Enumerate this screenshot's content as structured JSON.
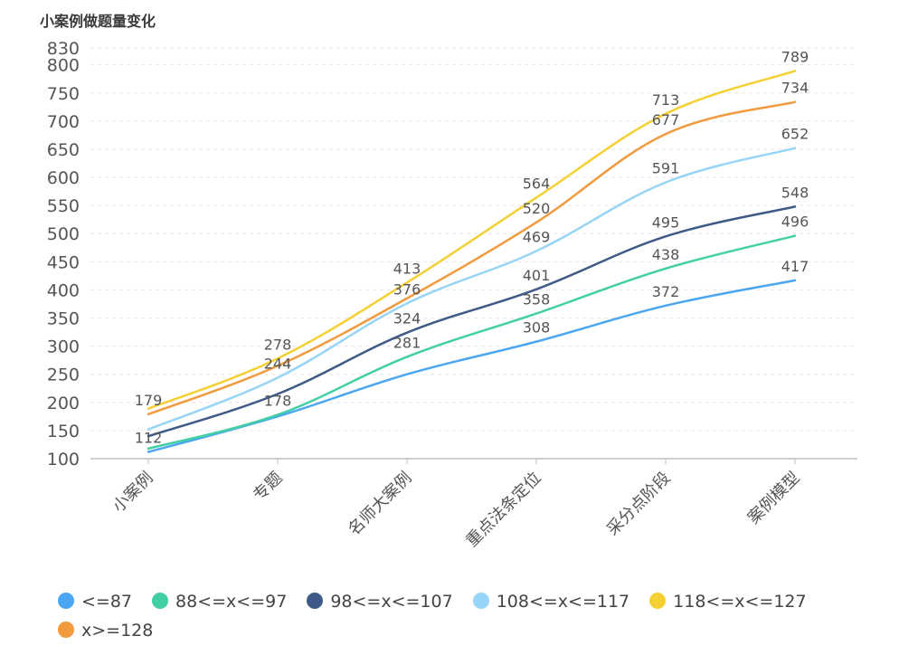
{
  "chart_data": {
    "type": "line",
    "title": "小案例做题量变化",
    "categories": [
      "小案例",
      "专题",
      "名师大案例",
      "重点法条定位",
      "采分点阶段",
      "案例模型"
    ],
    "y_ticks": [
      100,
      150,
      200,
      250,
      300,
      350,
      400,
      450,
      500,
      550,
      600,
      650,
      700,
      750,
      800,
      830
    ],
    "ylim": [
      100,
      830
    ],
    "grid": true,
    "legend_position": "bottom",
    "series": [
      {
        "name": "<=87",
        "color": "#4aa6f0",
        "values": [
          112,
          175,
          250,
          308,
          372,
          417
        ],
        "labels": [
          "112",
          "",
          "",
          "308",
          "372",
          "417"
        ]
      },
      {
        "name": "88<=x<=97",
        "color": "#43cfa6",
        "values": [
          118,
          178,
          281,
          358,
          438,
          496
        ],
        "labels": [
          "",
          "178",
          "281",
          "358",
          "438",
          "496"
        ]
      },
      {
        "name": "98<=x<=107",
        "color": "#3f5a86",
        "values": [
          140,
          215,
          324,
          401,
          495,
          548
        ],
        "labels": [
          "",
          "",
          "324",
          "401",
          "495",
          "548"
        ]
      },
      {
        "name": "108<=x<=117",
        "color": "#97d4f5",
        "values": [
          152,
          244,
          376,
          469,
          591,
          652
        ],
        "labels": [
          "",
          "244",
          "376",
          "469",
          "591",
          "652"
        ]
      },
      {
        "name": "118<=x<=127",
        "color": "#f5d032",
        "values": [
          189,
          278,
          413,
          564,
          713,
          789
        ],
        "labels": [
          "",
          "278",
          "413",
          "564",
          "713",
          "789"
        ]
      },
      {
        "name": "x>=128",
        "color": "#f19a3e",
        "values": [
          179,
          265,
          385,
          520,
          677,
          734
        ],
        "labels": [
          "179",
          "",
          "",
          "520",
          "677",
          "734"
        ]
      }
    ]
  }
}
